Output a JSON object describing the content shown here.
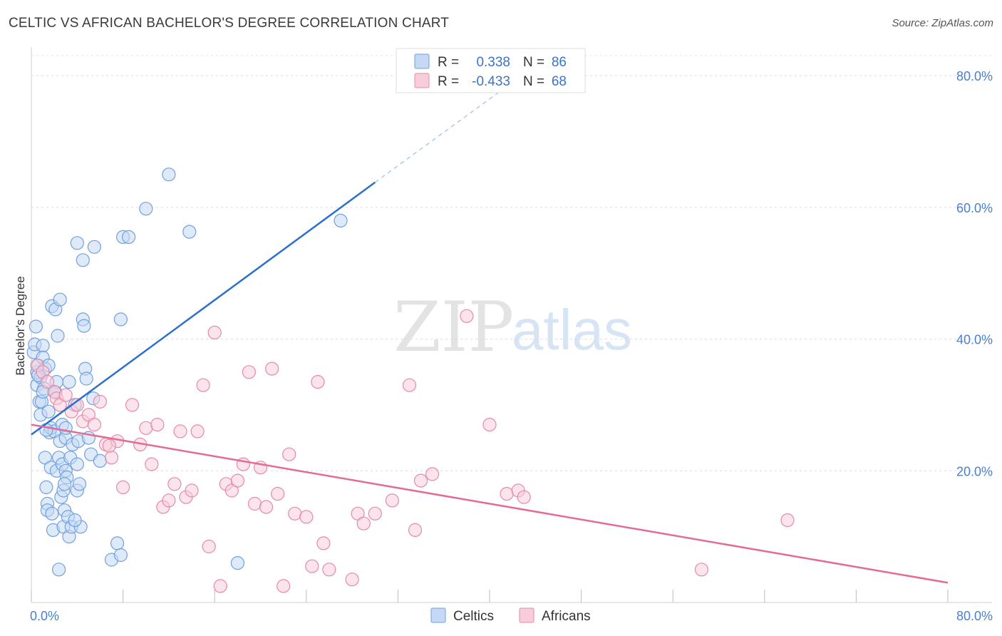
{
  "header": {
    "title": "CELTIC VS AFRICAN BACHELOR'S DEGREE CORRELATION CHART",
    "source": "Source: ZipAtlas.com"
  },
  "watermark": {
    "zip": "ZIP",
    "atlas": "atlas"
  },
  "legend": {
    "rows": [
      {
        "r_label": "R =",
        "r_value": "0.338",
        "n_label": "N =",
        "n_value": "86",
        "color": "#6fa0e0",
        "fill": "#c5d9f4"
      },
      {
        "r_label": "R =",
        "r_value": "-0.433",
        "n_label": "N =",
        "n_value": "68",
        "color": "#e58aa8",
        "fill": "#f8cddb"
      }
    ]
  },
  "bottom_legend": {
    "items": [
      "Celtics",
      "Africans"
    ]
  },
  "chart_data": {
    "type": "scatter",
    "xlabel": "",
    "ylabel": "Bachelor's Degree",
    "xlim": [
      0,
      80
    ],
    "ylim": [
      0,
      85
    ],
    "x_tick_labels": [
      "0.0%",
      "80.0%"
    ],
    "y_ticks": [
      20,
      40,
      60,
      80
    ],
    "y_tick_labels": [
      "20.0%",
      "40.0%",
      "60.0%",
      "80.0%"
    ],
    "grid": true,
    "legend_placement": "top-center",
    "series": [
      {
        "name": "Celtics",
        "color": "#6fa0e0",
        "fill": "#c5d9f4",
        "trend": {
          "x0": 0,
          "y0": 25.5,
          "x1": 30,
          "y1": 63.8,
          "dash_to_x": 42,
          "dash_to_y": 79
        },
        "points": [
          [
            0.2,
            38.0
          ],
          [
            0.3,
            39.2
          ],
          [
            0.4,
            41.9
          ],
          [
            0.5,
            35.0
          ],
          [
            0.5,
            33.0
          ],
          [
            0.6,
            36.0
          ],
          [
            0.7,
            30.5
          ],
          [
            0.8,
            34.2
          ],
          [
            0.8,
            28.5
          ],
          [
            0.9,
            30.5
          ],
          [
            1.0,
            39.0
          ],
          [
            1.0,
            37.2
          ],
          [
            1.1,
            32.5
          ],
          [
            1.2,
            35.5
          ],
          [
            1.2,
            22.0
          ],
          [
            1.3,
            17.5
          ],
          [
            1.4,
            15.0
          ],
          [
            1.4,
            14.0
          ],
          [
            1.5,
            36.0
          ],
          [
            1.5,
            29.0
          ],
          [
            1.6,
            25.8
          ],
          [
            1.7,
            26.5
          ],
          [
            1.7,
            20.5
          ],
          [
            1.8,
            13.5
          ],
          [
            1.8,
            45.0
          ],
          [
            1.9,
            11.0
          ],
          [
            2.0,
            26.0
          ],
          [
            2.0,
            32.0
          ],
          [
            2.1,
            44.5
          ],
          [
            2.2,
            33.5
          ],
          [
            2.2,
            20.0
          ],
          [
            2.3,
            40.5
          ],
          [
            2.4,
            22.0
          ],
          [
            2.5,
            24.5
          ],
          [
            2.5,
            46.0
          ],
          [
            2.6,
            16.0
          ],
          [
            2.7,
            21.0
          ],
          [
            2.7,
            27.0
          ],
          [
            2.8,
            17.0
          ],
          [
            2.8,
            11.5
          ],
          [
            2.9,
            14.0
          ],
          [
            3.0,
            25.0
          ],
          [
            3.0,
            20.0
          ],
          [
            3.1,
            19.0
          ],
          [
            3.2,
            13.0
          ],
          [
            3.3,
            33.5
          ],
          [
            3.3,
            10.0
          ],
          [
            3.4,
            22.0
          ],
          [
            3.5,
            11.5
          ],
          [
            3.6,
            24.0
          ],
          [
            3.8,
            30.0
          ],
          [
            4.0,
            21.0
          ],
          [
            4.0,
            17.0
          ],
          [
            4.1,
            24.5
          ],
          [
            4.2,
            18.0
          ],
          [
            4.3,
            11.5
          ],
          [
            4.5,
            43.0
          ],
          [
            4.6,
            42.0
          ],
          [
            4.7,
            35.5
          ],
          [
            4.8,
            34.0
          ],
          [
            5.0,
            25.0
          ],
          [
            5.2,
            22.5
          ],
          [
            5.4,
            31.0
          ],
          [
            6.0,
            21.5
          ],
          [
            7.5,
            9.0
          ],
          [
            7.8,
            43.0
          ],
          [
            8.0,
            55.5
          ],
          [
            8.5,
            55.5
          ],
          [
            10.0,
            59.8
          ],
          [
            12.0,
            65.0
          ],
          [
            13.8,
            56.3
          ],
          [
            18.0,
            6.0
          ],
          [
            27.0,
            58.0
          ],
          [
            2.4,
            5.0
          ],
          [
            0.6,
            34.5
          ],
          [
            1.0,
            32.0
          ],
          [
            1.3,
            26.2
          ],
          [
            2.1,
            31.9
          ],
          [
            3.0,
            26.5
          ],
          [
            4.0,
            54.6
          ],
          [
            4.5,
            52.0
          ],
          [
            5.5,
            54.0
          ],
          [
            7.0,
            6.5
          ],
          [
            7.8,
            7.2
          ],
          [
            3.8,
            12.5
          ],
          [
            2.9,
            18.0
          ]
        ]
      },
      {
        "name": "Africans",
        "color": "#e58aa8",
        "fill": "#f8cddb",
        "trend": {
          "x0": 0,
          "y0": 27.0,
          "x1": 80,
          "y1": 3.0
        },
        "points": [
          [
            0.5,
            36.0
          ],
          [
            1.0,
            35.0
          ],
          [
            1.4,
            33.5
          ],
          [
            2.0,
            32.0
          ],
          [
            2.2,
            31.0
          ],
          [
            2.5,
            30.0
          ],
          [
            3.0,
            31.5
          ],
          [
            3.5,
            29.0
          ],
          [
            4.0,
            30.0
          ],
          [
            4.5,
            27.5
          ],
          [
            5.0,
            28.5
          ],
          [
            5.5,
            27.0
          ],
          [
            6.0,
            30.5
          ],
          [
            6.5,
            24.0
          ],
          [
            7.0,
            22.0
          ],
          [
            7.5,
            24.5
          ],
          [
            8.0,
            17.5
          ],
          [
            8.8,
            30.0
          ],
          [
            9.5,
            24.0
          ],
          [
            10.0,
            26.5
          ],
          [
            10.5,
            21.0
          ],
          [
            11.0,
            27.0
          ],
          [
            11.5,
            14.5
          ],
          [
            12.0,
            15.5
          ],
          [
            12.5,
            18.0
          ],
          [
            13.0,
            26.0
          ],
          [
            13.5,
            16.0
          ],
          [
            14.0,
            17.0
          ],
          [
            14.5,
            26.0
          ],
          [
            15.0,
            33.0
          ],
          [
            15.5,
            8.5
          ],
          [
            16.0,
            41.0
          ],
          [
            16.5,
            2.5
          ],
          [
            17.0,
            18.0
          ],
          [
            17.5,
            17.0
          ],
          [
            18.0,
            18.5
          ],
          [
            18.5,
            21.0
          ],
          [
            19.0,
            35.0
          ],
          [
            19.5,
            15.0
          ],
          [
            20.0,
            20.5
          ],
          [
            20.5,
            14.5
          ],
          [
            21.0,
            35.5
          ],
          [
            21.5,
            16.5
          ],
          [
            22.0,
            2.5
          ],
          [
            22.5,
            22.5
          ],
          [
            23.0,
            13.5
          ],
          [
            24.0,
            13.0
          ],
          [
            24.5,
            5.5
          ],
          [
            25.0,
            33.5
          ],
          [
            25.5,
            9.0
          ],
          [
            26.0,
            5.0
          ],
          [
            28.0,
            3.5
          ],
          [
            28.5,
            13.5
          ],
          [
            29.0,
            12.0
          ],
          [
            30.0,
            13.5
          ],
          [
            31.5,
            15.5
          ],
          [
            33.0,
            33.0
          ],
          [
            33.5,
            11.0
          ],
          [
            34.0,
            18.5
          ],
          [
            35.0,
            19.5
          ],
          [
            38.0,
            43.5
          ],
          [
            40.0,
            27.0
          ],
          [
            41.5,
            16.5
          ],
          [
            42.5,
            17.0
          ],
          [
            43.0,
            16.0
          ],
          [
            58.5,
            5.0
          ],
          [
            66.0,
            12.5
          ],
          [
            6.8,
            23.8
          ]
        ]
      }
    ]
  }
}
